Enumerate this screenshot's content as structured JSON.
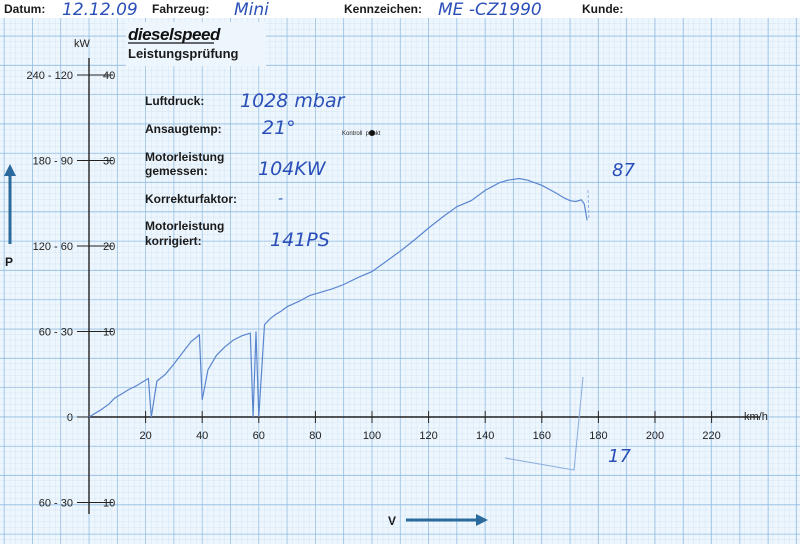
{
  "header": {
    "datum_label": "Datum:",
    "datum_value": "12.12.09",
    "fahrzeug_label": "Fahrzeug:",
    "fahrzeug_value": "Mini",
    "kennzeichen_label": "Kennzeichen:",
    "kennzeichen_value": "ME -CZ1990",
    "kunde_label": "Kunde:"
  },
  "brand": {
    "logo": "dieselspeed",
    "subtitle": "Leistungsprüfung"
  },
  "form": {
    "luftdruck_label": "Luftdruck:",
    "luftdruck_value": "1028 mbar",
    "ansaugtemp_label": "Ansaugtemp:",
    "ansaugtemp_value": "21°",
    "kontrollpunkt_label": "Kontroll  punkt",
    "motorleistung_gemessen_label_1": "Motorleistung",
    "motorleistung_gemessen_label_2": "gemessen:",
    "motorleistung_gemessen_value": "104KW",
    "korrekturfaktor_label": "Korrekturfaktor:",
    "korrekturfaktor_value": "-",
    "motorleistung_korrigiert_label_1": "Motorleistung",
    "motorleistung_korrigiert_label_2": "korrigiert:",
    "motorleistung_korrigiert_value": "141PS"
  },
  "annotations": {
    "note_87": "87",
    "note_17": "17"
  },
  "axes": {
    "y_unit_label": "kW",
    "p_label": "P",
    "v_label": "V",
    "x_unit_label": "km/h"
  },
  "chart_data": {
    "type": "line",
    "x_ticks": [
      20,
      40,
      60,
      80,
      100,
      120,
      140,
      160,
      180,
      200,
      220
    ],
    "x_tick_labels": [
      "20",
      "40",
      "60",
      "80",
      "100",
      "120",
      "140",
      "160",
      "180",
      "200",
      "220"
    ],
    "xlabel": "km/h",
    "ylabel": "kW",
    "xlim": [
      0,
      243
    ],
    "ylim": [
      -12.5,
      48
    ],
    "y_ticks": [
      {
        "kw": 40,
        "left": "240 - 120",
        "right": "40"
      },
      {
        "kw": 30,
        "left": "180 - 90",
        "right": "30"
      },
      {
        "kw": 20,
        "left": "120 - 60",
        "right": "20"
      },
      {
        "kw": 10,
        "left": "60 - 30",
        "right": "10"
      },
      {
        "kw": 0,
        "left": "0",
        "right": ""
      },
      {
        "kw": -10,
        "left": "60 - 30",
        "right": "10"
      }
    ],
    "grid": true,
    "series": [
      {
        "color": "#5a86cf",
        "x": [
          0,
          4,
          7,
          9,
          12,
          14,
          17,
          19,
          21,
          22,
          24,
          27,
          30,
          33,
          36,
          39,
          40,
          42,
          45,
          48,
          51,
          54,
          57,
          58,
          59,
          60,
          62,
          64,
          66,
          68,
          70,
          74,
          78,
          82,
          86,
          90,
          95,
          100,
          105,
          110,
          115,
          120,
          125,
          130,
          135,
          140,
          145,
          148,
          152,
          155,
          160,
          165,
          168,
          170,
          172,
          174,
          175,
          176
        ],
        "y": [
          0,
          0.8,
          1.5,
          2.2,
          2.8,
          3.2,
          3.7,
          4.1,
          4.5,
          0,
          4.2,
          5.0,
          6.2,
          7.5,
          8.8,
          9.6,
          2.0,
          5.5,
          7.2,
          8.2,
          9.0,
          9.5,
          9.8,
          0,
          10.0,
          0,
          10.8,
          11.5,
          12.0,
          12.4,
          12.9,
          13.5,
          14.2,
          14.6,
          15.0,
          15.5,
          16.3,
          17.0,
          18.2,
          19.4,
          20.7,
          22.1,
          23.4,
          24.6,
          25.3,
          26.5,
          27.4,
          27.7,
          27.9,
          27.7,
          27.1,
          26.2,
          25.6,
          25.3,
          25.2,
          25.4,
          24.9,
          23.0
        ]
      }
    ],
    "arrows": [
      "P",
      "V"
    ]
  }
}
